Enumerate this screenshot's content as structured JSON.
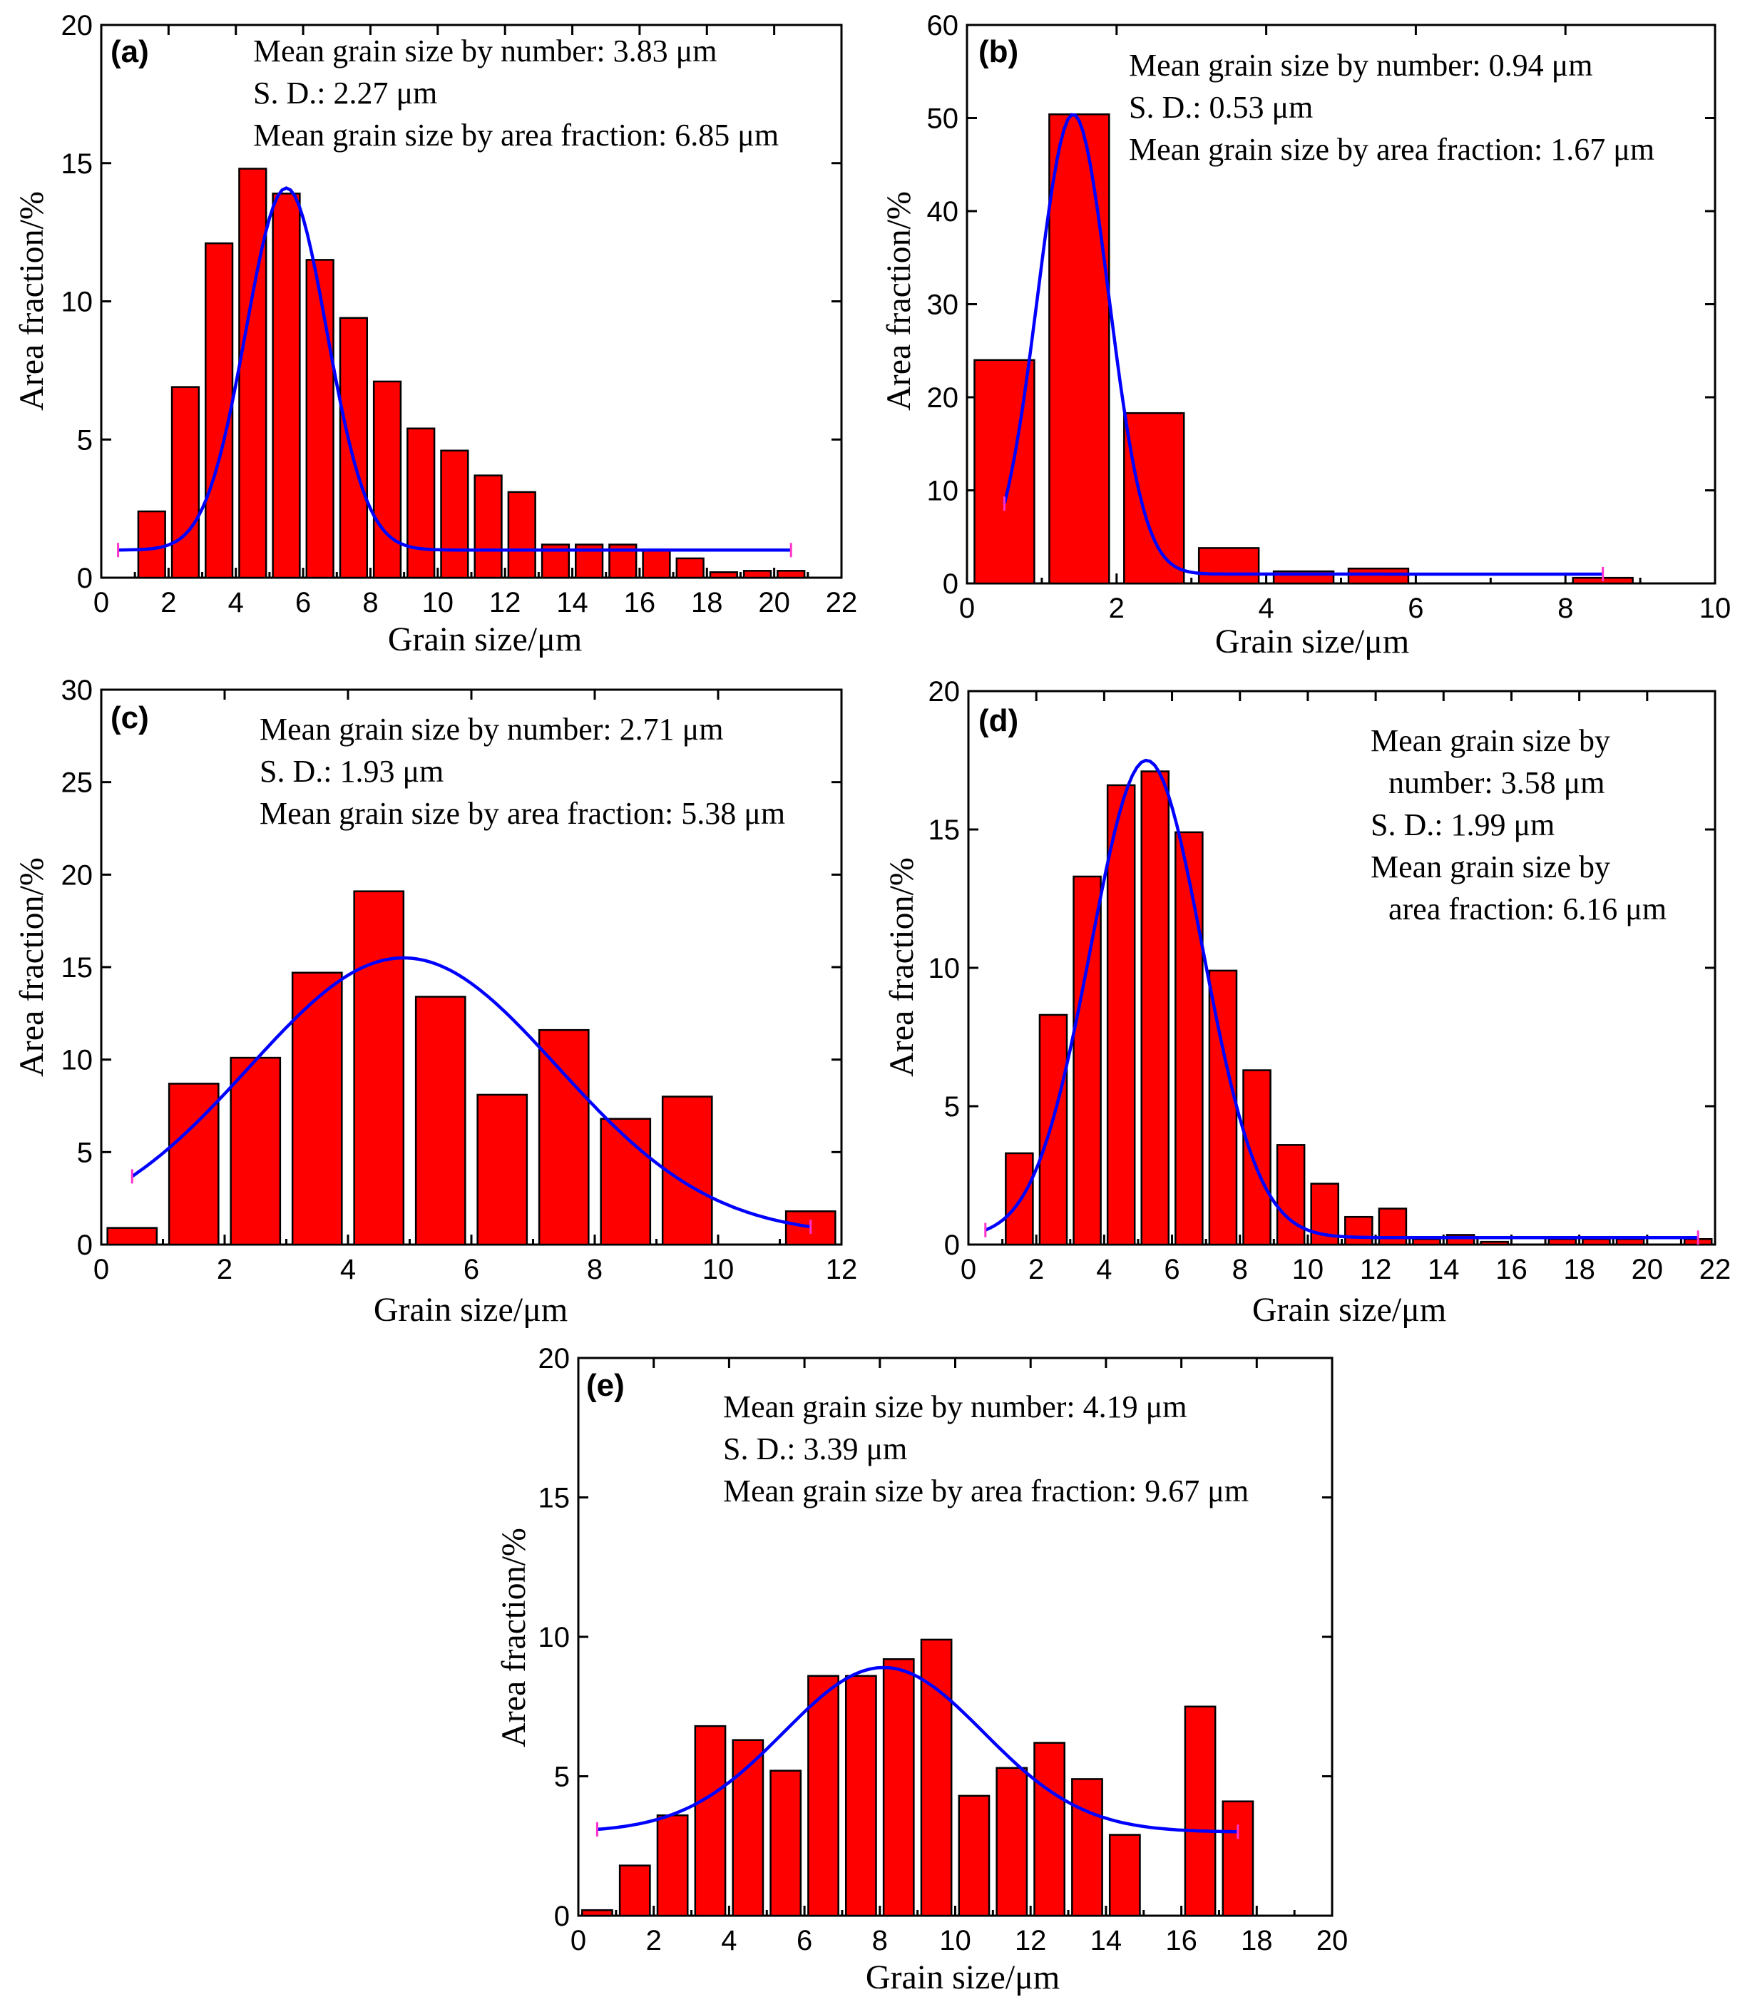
{
  "chart_data": [
    {
      "type": "bar",
      "panel": "(a)",
      "xlabel": "Grain size/μm",
      "ylabel": "Area fraction/%",
      "xlim": [
        0,
        22
      ],
      "ylim": [
        0,
        20
      ],
      "xticks": [
        0,
        2,
        4,
        6,
        8,
        10,
        12,
        14,
        16,
        18,
        20,
        22
      ],
      "yticks": [
        0,
        5,
        10,
        15,
        20
      ],
      "bar_width": 0.8,
      "x": [
        1.5,
        2.5,
        3.5,
        4.5,
        5.5,
        6.5,
        7.5,
        8.5,
        9.5,
        10.5,
        11.5,
        12.5,
        13.5,
        14.5,
        15.5,
        16.5,
        17.5,
        18.5,
        19.5,
        20.5
      ],
      "values": [
        2.4,
        6.9,
        12.1,
        14.8,
        13.9,
        11.5,
        9.4,
        7.1,
        5.4,
        4.6,
        3.7,
        3.1,
        1.2,
        1.2,
        1.2,
        1.0,
        0.7,
        0.2,
        0.25,
        0.25
      ],
      "fit": {
        "y0": 1.0,
        "A": 13.1,
        "xc": 5.5,
        "w": 2.4,
        "x_range": [
          0.5,
          20.5
        ]
      },
      "annotations": [
        "Mean grain size by number: 3.83 μm",
        "S. D.: 2.27 μm",
        "Mean grain size by area fraction: 6.85 μm"
      ]
    },
    {
      "type": "bar",
      "panel": "(b)",
      "xlabel": "Grain size/μm",
      "ylabel": "Area fraction/%",
      "xlim": [
        0,
        10
      ],
      "ylim": [
        0,
        60
      ],
      "xticks": [
        0,
        2,
        4,
        6,
        8,
        10
      ],
      "yticks": [
        0,
        10,
        20,
        30,
        40,
        50,
        60
      ],
      "bar_width": 0.8,
      "x": [
        0.5,
        1.5,
        2.5,
        3.5,
        4.5,
        5.5,
        6.5,
        7.5,
        8.5
      ],
      "values": [
        24.0,
        50.4,
        18.3,
        3.8,
        1.3,
        1.6,
        0,
        0,
        0.6
      ],
      "fit": {
        "y0": 1.0,
        "A": 49.4,
        "xc": 1.42,
        "w": 0.95,
        "x_range": [
          0.5,
          8.5
        ]
      },
      "annotations": [
        "Mean grain size by number: 0.94 μm",
        "S. D.: 0.53 μm",
        "Mean grain size by area fraction: 1.67 μm"
      ]
    },
    {
      "type": "bar",
      "panel": "(c)",
      "xlabel": "Grain size/μm",
      "ylabel": "Area fraction/%",
      "xlim": [
        0,
        12
      ],
      "ylim": [
        0,
        30
      ],
      "xticks": [
        0,
        2,
        4,
        6,
        8,
        10,
        12
      ],
      "yticks": [
        0,
        5,
        10,
        15,
        20,
        25,
        30
      ],
      "bar_width": 0.8,
      "x": [
        0.5,
        1.5,
        2.5,
        3.5,
        4.5,
        5.5,
        6.5,
        7.5,
        8.5,
        9.5,
        11.5
      ],
      "values": [
        0.9,
        8.7,
        10.1,
        14.7,
        19.1,
        13.4,
        8.1,
        11.6,
        6.8,
        8.0,
        1.8
      ],
      "fit": {
        "y0": 0.5,
        "A": 15.0,
        "xc": 4.9,
        "w": 5.0,
        "x_range": [
          0.5,
          11.5
        ]
      },
      "annotations": [
        "Mean grain size by number: 2.71 μm",
        "S. D.: 1.93 μm",
        "Mean grain size by area fraction: 5.38 μm"
      ]
    },
    {
      "type": "bar",
      "panel": "(d)",
      "xlabel": "Grain size/μm",
      "ylabel": "Area fraction/%",
      "xlim": [
        0,
        22
      ],
      "ylim": [
        0,
        20
      ],
      "xticks": [
        0,
        2,
        4,
        6,
        8,
        10,
        12,
        14,
        16,
        18,
        20,
        22
      ],
      "yticks": [
        0,
        5,
        10,
        15,
        20
      ],
      "bar_width": 0.8,
      "x": [
        1.5,
        2.5,
        3.5,
        4.5,
        5.5,
        6.5,
        7.5,
        8.5,
        9.5,
        10.5,
        11.5,
        12.5,
        13.5,
        14.5,
        15.5,
        16.5,
        17.5,
        18.5,
        19.5,
        20.5,
        21.5
      ],
      "values": [
        3.3,
        8.3,
        13.3,
        16.6,
        17.1,
        14.9,
        9.9,
        6.3,
        3.6,
        2.2,
        1.0,
        1.3,
        0.2,
        0.35,
        0.1,
        0,
        0.2,
        0.2,
        0.2,
        0,
        0.2
      ],
      "fit": {
        "y0": 0.25,
        "A": 17.25,
        "xc": 5.25,
        "w": 3.3,
        "x_range": [
          0.5,
          21.5
        ]
      },
      "annotations": [
        "Mean grain size by",
        "number: 3.58 μm",
        "S. D.: 1.99 μm",
        "Mean grain size by",
        "area fraction: 6.16 μm"
      ]
    },
    {
      "type": "bar",
      "panel": "(e)",
      "xlabel": "Grain size/μm",
      "ylabel": "Area fraction/%",
      "xlim": [
        0,
        20
      ],
      "ylim": [
        0,
        20
      ],
      "xticks": [
        0,
        2,
        4,
        6,
        8,
        10,
        12,
        14,
        16,
        18,
        20
      ],
      "yticks": [
        0,
        5,
        10,
        15,
        20
      ],
      "bar_width": 0.8,
      "x": [
        0.5,
        1.5,
        2.5,
        3.5,
        4.5,
        5.5,
        6.5,
        7.5,
        8.5,
        9.5,
        10.5,
        11.5,
        12.5,
        13.5,
        14.5,
        16.5,
        17.5
      ],
      "values": [
        0.2,
        1.8,
        3.6,
        6.8,
        6.3,
        5.2,
        8.6,
        8.6,
        9.2,
        9.9,
        4.3,
        5.3,
        6.2,
        4.9,
        2.9,
        7.5,
        4.1
      ],
      "fit": {
        "y0": 3.0,
        "A": 5.9,
        "xc": 8.1,
        "w": 5.3,
        "x_range": [
          0.5,
          17.5
        ]
      },
      "annotations": [
        "Mean grain size by number: 4.19 μm",
        "S. D.: 3.39 μm",
        "Mean grain size by area fraction: 9.67 μm"
      ]
    }
  ]
}
